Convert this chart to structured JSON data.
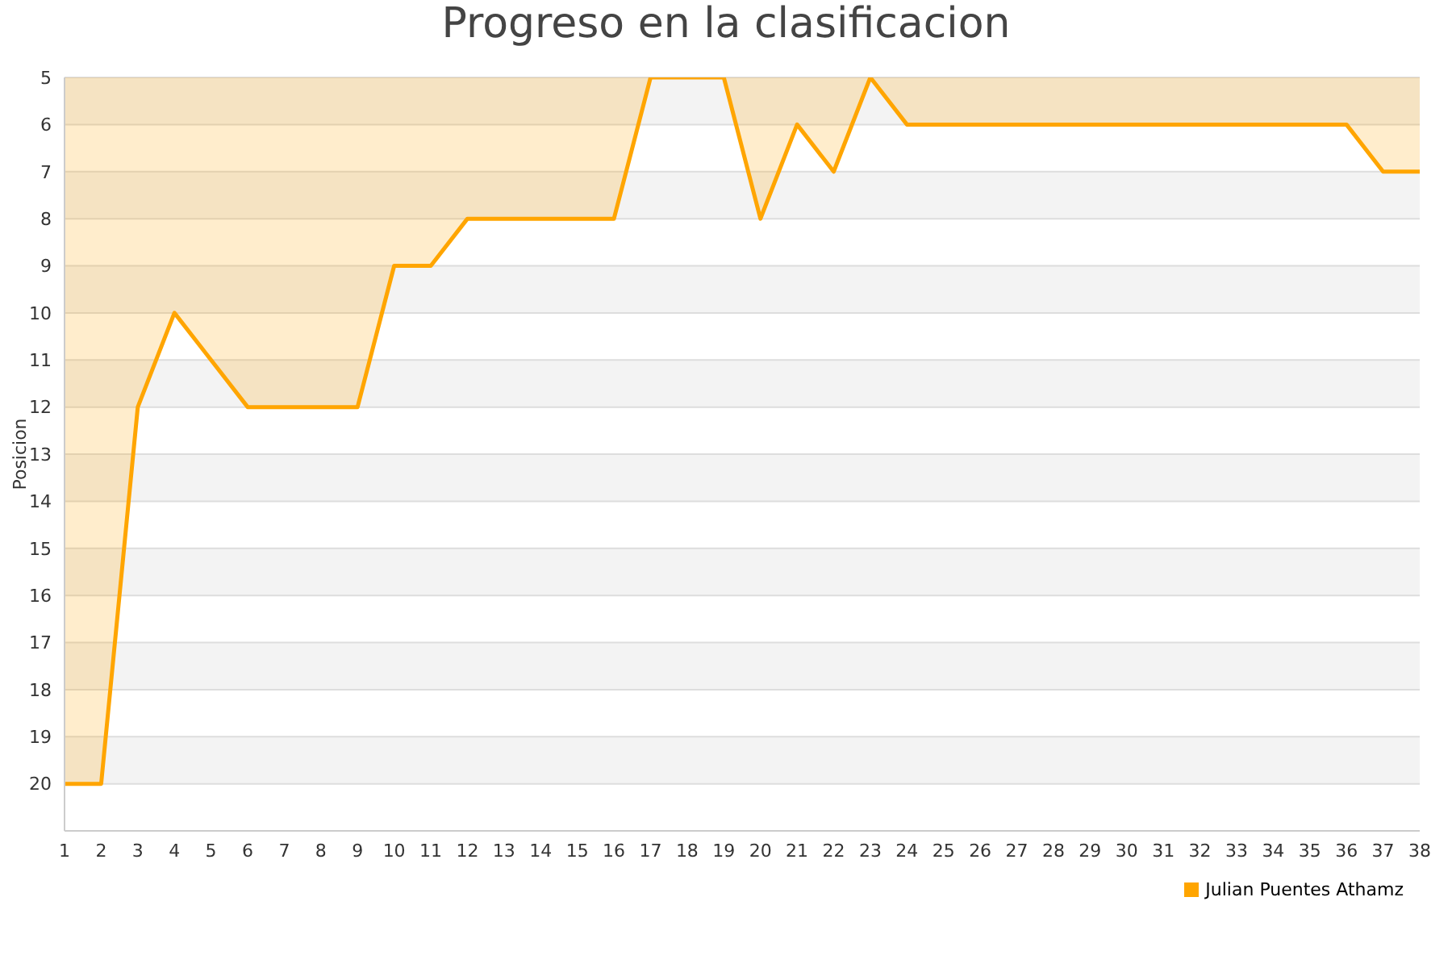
{
  "chart_data": {
    "type": "area",
    "title": "Progreso en la clasificacion",
    "ylabel": "Posicion",
    "x": [
      1,
      2,
      3,
      4,
      5,
      6,
      7,
      8,
      9,
      10,
      11,
      12,
      13,
      14,
      15,
      16,
      17,
      18,
      19,
      20,
      21,
      22,
      23,
      24,
      25,
      26,
      27,
      28,
      29,
      30,
      31,
      32,
      33,
      34,
      35,
      36,
      37,
      38
    ],
    "series": [
      {
        "name": "Julian Puentes Athamz",
        "color": "#ffa500",
        "values": [
          20,
          20,
          12,
          10,
          11,
          12,
          12,
          12,
          12,
          9,
          9,
          8,
          8,
          8,
          8,
          8,
          5,
          5,
          5,
          8,
          6,
          7,
          5,
          6,
          6,
          6,
          6,
          6,
          6,
          6,
          6,
          6,
          6,
          6,
          6,
          6,
          7,
          7
        ]
      }
    ],
    "xlim": [
      1,
      38
    ],
    "xticks": [
      1,
      2,
      3,
      4,
      5,
      6,
      7,
      8,
      9,
      10,
      11,
      12,
      13,
      14,
      15,
      16,
      17,
      18,
      19,
      20,
      21,
      22,
      23,
      24,
      25,
      26,
      27,
      28,
      29,
      30,
      31,
      32,
      33,
      34,
      35,
      36,
      37,
      38
    ],
    "ylim": [
      21,
      5
    ],
    "yticks": [
      5,
      6,
      7,
      8,
      9,
      10,
      11,
      12,
      13,
      14,
      15,
      16,
      17,
      18,
      19,
      20
    ],
    "grid": "y",
    "legend": "bottom right",
    "marker": "none",
    "line_style": "solid"
  }
}
